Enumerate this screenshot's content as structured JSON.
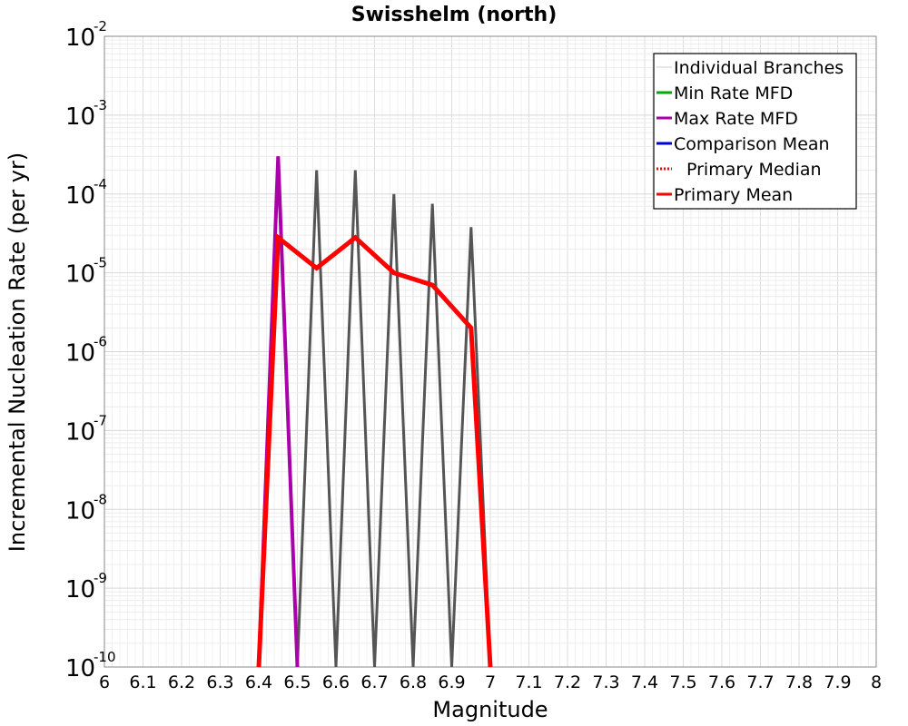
{
  "chart_data": {
    "type": "line",
    "title": "Swisshelm (north)",
    "xlabel": "Magnitude",
    "ylabel": "Incremental Nucleation Rate (per yr)",
    "xlim": [
      6,
      8
    ],
    "ylim": [
      1e-10,
      0.01
    ],
    "yscale": "log",
    "grid": true,
    "legend_position": "top-right",
    "x_ticks": [
      "6",
      "6.1",
      "6.2",
      "6.3",
      "6.4",
      "6.5",
      "6.6",
      "6.7",
      "6.8",
      "6.9",
      "7",
      "7.1",
      "7.2",
      "7.3",
      "7.4",
      "7.5",
      "7.6",
      "7.7",
      "7.8",
      "7.9",
      "8"
    ],
    "y_ticks": [
      {
        "value": 1e-10,
        "base": "10",
        "exp": "-10"
      },
      {
        "value": 1e-09,
        "base": "10",
        "exp": "-9"
      },
      {
        "value": 1e-08,
        "base": "10",
        "exp": "-8"
      },
      {
        "value": 1e-07,
        "base": "10",
        "exp": "-7"
      },
      {
        "value": 1e-06,
        "base": "10",
        "exp": "-6"
      },
      {
        "value": 1e-05,
        "base": "10",
        "exp": "-5"
      },
      {
        "value": 0.0001,
        "base": "10",
        "exp": "-4"
      },
      {
        "value": 0.001,
        "base": "10",
        "exp": "-3"
      },
      {
        "value": 0.01,
        "base": "10",
        "exp": "-2"
      }
    ],
    "series": [
      {
        "name": "Individual Branches",
        "color": "#555555",
        "width": 3,
        "style": "solid",
        "lines": [
          {
            "x": [
              6.4,
              6.45,
              6.5
            ],
            "y": [
              1e-10,
              0.0003,
              1e-10
            ]
          },
          {
            "x": [
              6.5,
              6.55,
              6.6
            ],
            "y": [
              1e-10,
              0.0002,
              1e-10
            ]
          },
          {
            "x": [
              6.6,
              6.65,
              6.7
            ],
            "y": [
              1e-10,
              0.0002,
              1e-10
            ]
          },
          {
            "x": [
              6.7,
              6.75,
              6.8
            ],
            "y": [
              1e-10,
              0.0001,
              1e-10
            ]
          },
          {
            "x": [
              6.8,
              6.85,
              6.9
            ],
            "y": [
              1e-10,
              7.5e-05,
              1e-10
            ]
          },
          {
            "x": [
              6.9,
              6.95,
              7.0
            ],
            "y": [
              1e-10,
              3.8e-05,
              1e-10
            ]
          }
        ]
      },
      {
        "name": "Min Rate MFD",
        "color": "#00aa00",
        "width": 3,
        "style": "solid",
        "x": [],
        "y": []
      },
      {
        "name": "Max Rate MFD",
        "color": "#aa00aa",
        "width": 4,
        "style": "solid",
        "x": [
          6.4,
          6.45,
          6.5
        ],
        "y": [
          1e-10,
          0.0003,
          1e-10
        ]
      },
      {
        "name": "Comparison Mean",
        "color": "#0000dd",
        "width": 3,
        "style": "solid",
        "x": [],
        "y": []
      },
      {
        "name": "Primary Median",
        "color": "#ff0000",
        "width": 3,
        "style": "dotted",
        "x": [],
        "y": []
      },
      {
        "name": "Primary Mean",
        "color": "#ff0000",
        "width": 5,
        "style": "solid",
        "x": [
          6.4,
          6.45,
          6.55,
          6.65,
          6.75,
          6.85,
          6.95,
          7.0
        ],
        "y": [
          1e-10,
          2.8e-05,
          1.15e-05,
          2.8e-05,
          1e-05,
          7e-06,
          2e-06,
          1e-10
        ]
      }
    ]
  }
}
